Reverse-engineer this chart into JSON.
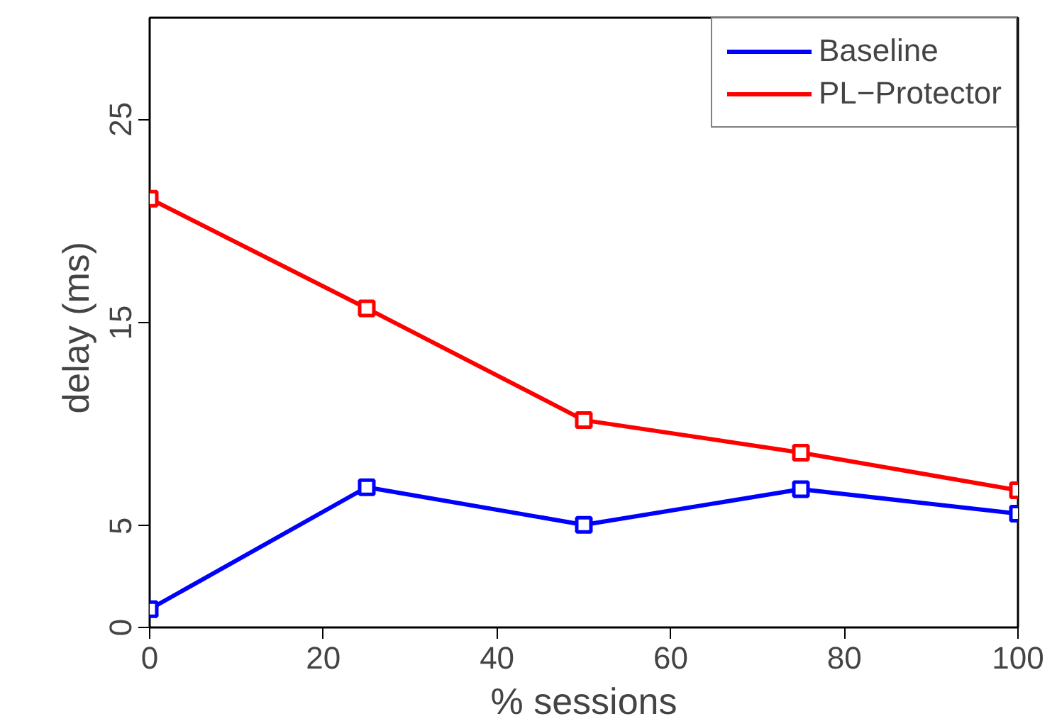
{
  "chart_data": {
    "type": "line",
    "xlabel": "% sessions",
    "ylabel": "delay  (ms)",
    "x": [
      0,
      25,
      50,
      75,
      100
    ],
    "series": [
      {
        "name": "Baseline",
        "color": "#0000ff",
        "values": [
          0.9,
          6.9,
          5.05,
          6.8,
          5.6
        ]
      },
      {
        "name": "PL−Protector",
        "color": "#ff0000",
        "values": [
          21.1,
          15.7,
          10.2,
          8.6,
          6.75
        ]
      }
    ],
    "xlim": [
      0,
      100
    ],
    "ylim": [
      0,
      30
    ],
    "xticks": [
      0,
      20,
      40,
      60,
      80,
      100
    ],
    "yticks": [
      0,
      5,
      15,
      25
    ],
    "grid": false,
    "legend": "top right",
    "marker": "square",
    "line_style": "solid"
  }
}
